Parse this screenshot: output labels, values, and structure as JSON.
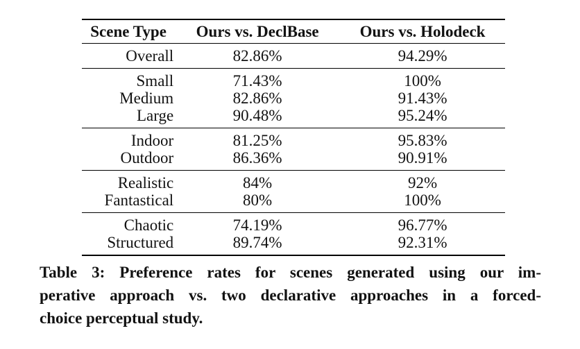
{
  "page": {
    "background_color": "#ffffff",
    "text_color": "#121212",
    "rule_color": "#000000"
  },
  "table": {
    "columns": {
      "scene_type": "Scene Type",
      "vs_declbase": "Ours vs. DeclBase",
      "vs_holodeck": "Ours vs. Holodeck"
    },
    "groups": [
      {
        "rows": [
          {
            "scene": "Overall",
            "vs_declbase": "82.86%",
            "vs_holodeck": "94.29%"
          }
        ]
      },
      {
        "rows": [
          {
            "scene": "Small",
            "vs_declbase": "71.43%",
            "vs_holodeck": "100%"
          },
          {
            "scene": "Medium",
            "vs_declbase": "82.86%",
            "vs_holodeck": "91.43%"
          },
          {
            "scene": "Large",
            "vs_declbase": "90.48%",
            "vs_holodeck": "95.24%"
          }
        ]
      },
      {
        "rows": [
          {
            "scene": "Indoor",
            "vs_declbase": "81.25%",
            "vs_holodeck": "95.83%"
          },
          {
            "scene": "Outdoor",
            "vs_declbase": "86.36%",
            "vs_holodeck": "90.91%"
          }
        ]
      },
      {
        "rows": [
          {
            "scene": "Realistic",
            "vs_declbase": "84%",
            "vs_holodeck": "92%"
          },
          {
            "scene": "Fantastical",
            "vs_declbase": "80%",
            "vs_holodeck": "100%"
          }
        ]
      },
      {
        "rows": [
          {
            "scene": "Chaotic",
            "vs_declbase": "74.19%",
            "vs_holodeck": "96.77%"
          },
          {
            "scene": "Structured",
            "vs_declbase": "89.74%",
            "vs_holodeck": "92.31%"
          }
        ]
      }
    ]
  },
  "caption": {
    "lines": [
      "Table 3: Preference rates for scenes generated using our im-",
      "perative approach vs. two declarative approaches in a forced-",
      "choice perceptual study."
    ],
    "full_text": "Table 3: Preference rates for scenes generated using our imperative approach vs. two declarative approaches in a forced-choice perceptual study."
  }
}
